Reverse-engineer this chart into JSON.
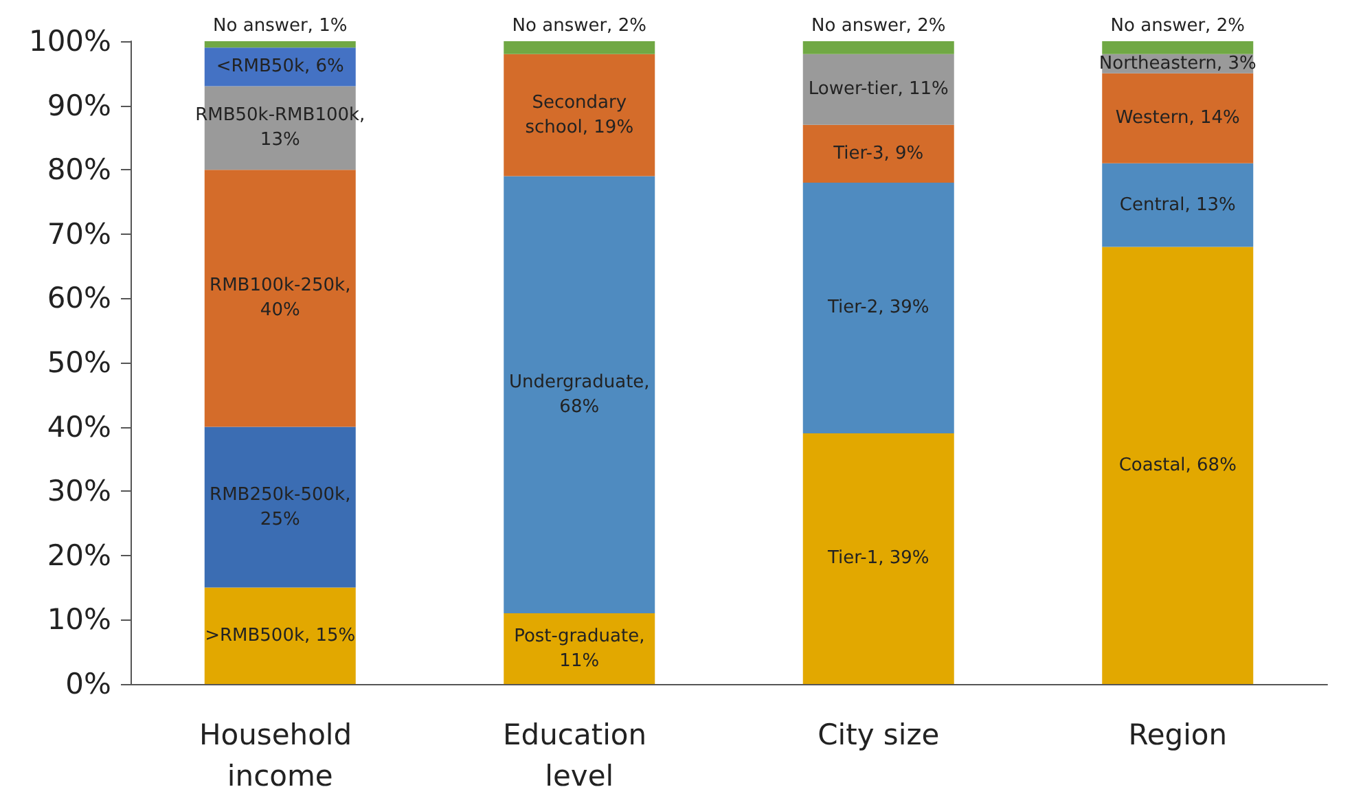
{
  "chart_data": {
    "type": "bar",
    "stacked": true,
    "categories": [
      "Household income",
      "Education level",
      "City size",
      "Region"
    ],
    "ylim": [
      0,
      100
    ],
    "yticks": [
      {
        "value": 0,
        "label": "0%"
      },
      {
        "value": 10,
        "label": "10%"
      },
      {
        "value": 20,
        "label": "20%"
      },
      {
        "value": 30,
        "label": "30%"
      },
      {
        "value": 40,
        "label": "40%"
      },
      {
        "value": 50,
        "label": "50%"
      },
      {
        "value": 60,
        "label": "60%"
      },
      {
        "value": 70,
        "label": "70%"
      },
      {
        "value": 80,
        "label": "80%"
      },
      {
        "value": 90,
        "label": "90%"
      },
      {
        "value": 100,
        "label": "100%"
      }
    ],
    "grid": false,
    "series": [
      {
        "color": "#e2a800",
        "values": [
          15,
          11,
          39,
          68
        ],
        "value_labels": [
          ">RMB500k, 15%",
          "Post-graduate, 11%",
          "Tier-1, 39%",
          "Coastal, 68%"
        ]
      },
      {
        "color": "#3b6db3",
        "values": [
          25,
          null,
          null,
          null
        ],
        "value_labels": [
          "RMB250k-500k, 25%",
          null,
          null,
          null
        ]
      },
      {
        "color": "#4f8bc0",
        "values": [
          null,
          68,
          39,
          13
        ],
        "value_labels": [
          null,
          "Undergraduate, 68%",
          "Tier-2, 39%",
          "Central, 13%"
        ]
      },
      {
        "color": "#d46c2a",
        "values": [
          40,
          19,
          9,
          14
        ],
        "value_labels": [
          "RMB100k-250k, 40%",
          "Secondary school, 19%",
          "Tier-3, 9%",
          "Western, 14%"
        ]
      },
      {
        "color": "#9a9a9a",
        "values": [
          13,
          null,
          11,
          3
        ],
        "value_labels": [
          "RMB50k-RMB100k, 13%",
          null,
          "Lower-tier, 11%",
          "Northeastern, 3%"
        ]
      },
      {
        "color": "#4472c4",
        "values": [
          6,
          null,
          null,
          null
        ],
        "value_labels": [
          "<RMB50k, 6%",
          null,
          null,
          null
        ]
      },
      {
        "color": "#70a844",
        "values": [
          1,
          2,
          2,
          2
        ],
        "value_labels": [
          "No answer, 1%",
          "No answer, 2%",
          "No answer, 2%",
          "No answer, 2%"
        ]
      }
    ]
  }
}
